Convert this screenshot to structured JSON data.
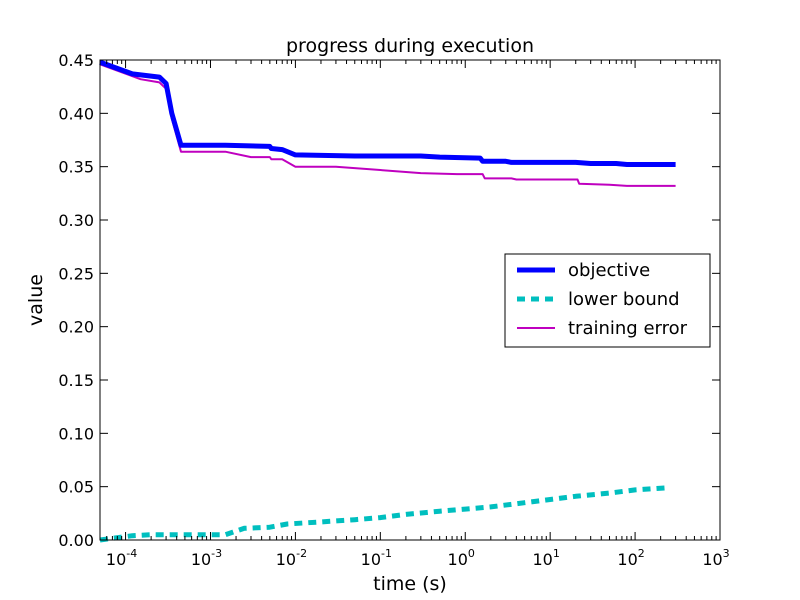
{
  "chart_data": {
    "type": "line",
    "title": "progress during execution",
    "xlabel": "time (s)",
    "ylabel": "value",
    "xscale": "log",
    "xlim": [
      5e-05,
      1000
    ],
    "ylim": [
      0,
      0.45
    ],
    "x_ticks": [
      {
        "value": 0.0001,
        "base": "10",
        "exp": "-4"
      },
      {
        "value": 0.001,
        "base": "10",
        "exp": "-3"
      },
      {
        "value": 0.01,
        "base": "10",
        "exp": "-2"
      },
      {
        "value": 0.1,
        "base": "10",
        "exp": "-1"
      },
      {
        "value": 1,
        "base": "10",
        "exp": "0"
      },
      {
        "value": 10,
        "base": "10",
        "exp": "1"
      },
      {
        "value": 100,
        "base": "10",
        "exp": "2"
      },
      {
        "value": 1000,
        "base": "10",
        "exp": "3"
      }
    ],
    "y_ticks": [
      {
        "value": 0.0,
        "label": "0.00"
      },
      {
        "value": 0.05,
        "label": "0.05"
      },
      {
        "value": 0.1,
        "label": "0.10"
      },
      {
        "value": 0.15,
        "label": "0.15"
      },
      {
        "value": 0.2,
        "label": "0.20"
      },
      {
        "value": 0.25,
        "label": "0.25"
      },
      {
        "value": 0.3,
        "label": "0.30"
      },
      {
        "value": 0.35,
        "label": "0.35"
      },
      {
        "value": 0.4,
        "label": "0.40"
      },
      {
        "value": 0.45,
        "label": "0.45"
      }
    ],
    "grid": false,
    "legend_position": "center-right",
    "series": [
      {
        "name": "objective",
        "color": "#0000ff",
        "dash": "solid",
        "width": "thick",
        "points": [
          [
            5e-05,
            0.448
          ],
          [
            0.00012,
            0.437
          ],
          [
            0.00025,
            0.434
          ],
          [
            0.0003,
            0.428
          ],
          [
            0.00035,
            0.4
          ],
          [
            0.00045,
            0.37
          ],
          [
            0.0015,
            0.37
          ],
          [
            0.005,
            0.369
          ],
          [
            0.0052,
            0.367
          ],
          [
            0.007,
            0.366
          ],
          [
            0.01,
            0.361
          ],
          [
            0.05,
            0.36
          ],
          [
            0.3,
            0.36
          ],
          [
            0.5,
            0.359
          ],
          [
            1.5,
            0.358
          ],
          [
            1.6,
            0.355
          ],
          [
            3.0,
            0.355
          ],
          [
            3.5,
            0.354
          ],
          [
            20,
            0.354
          ],
          [
            30,
            0.353
          ],
          [
            60,
            0.353
          ],
          [
            80,
            0.352
          ],
          [
            300,
            0.352
          ]
        ]
      },
      {
        "name": "lower bound",
        "color": "#00bfbf",
        "dash": "dashed",
        "width": "thick",
        "points": [
          [
            5e-05,
            0.0
          ],
          [
            0.00012,
            0.004
          ],
          [
            0.0002,
            0.005
          ],
          [
            0.0015,
            0.005
          ],
          [
            0.0025,
            0.011
          ],
          [
            0.005,
            0.012
          ],
          [
            0.008,
            0.015
          ],
          [
            0.02,
            0.017
          ],
          [
            0.05,
            0.019
          ],
          [
            0.1,
            0.021
          ],
          [
            0.2,
            0.024
          ],
          [
            0.5,
            0.027
          ],
          [
            1.0,
            0.029
          ],
          [
            2.0,
            0.031
          ],
          [
            5.0,
            0.035
          ],
          [
            10,
            0.038
          ],
          [
            20,
            0.041
          ],
          [
            50,
            0.044
          ],
          [
            100,
            0.047
          ],
          [
            250,
            0.049
          ]
        ]
      },
      {
        "name": "training error",
        "color": "#bf00bf",
        "dash": "solid",
        "width": "thin",
        "points": [
          [
            5e-05,
            0.446
          ],
          [
            0.00015,
            0.432
          ],
          [
            0.00025,
            0.429
          ],
          [
            0.0003,
            0.423
          ],
          [
            0.00035,
            0.395
          ],
          [
            0.00045,
            0.364
          ],
          [
            0.0015,
            0.364
          ],
          [
            0.003,
            0.359
          ],
          [
            0.005,
            0.359
          ],
          [
            0.0052,
            0.357
          ],
          [
            0.007,
            0.357
          ],
          [
            0.01,
            0.35
          ],
          [
            0.03,
            0.35
          ],
          [
            0.3,
            0.344
          ],
          [
            0.8,
            0.343
          ],
          [
            1.6,
            0.343
          ],
          [
            1.7,
            0.339
          ],
          [
            3.5,
            0.339
          ],
          [
            4,
            0.338
          ],
          [
            21,
            0.338
          ],
          [
            22,
            0.334
          ],
          [
            50,
            0.333
          ],
          [
            80,
            0.332
          ],
          [
            300,
            0.332
          ]
        ]
      }
    ]
  }
}
